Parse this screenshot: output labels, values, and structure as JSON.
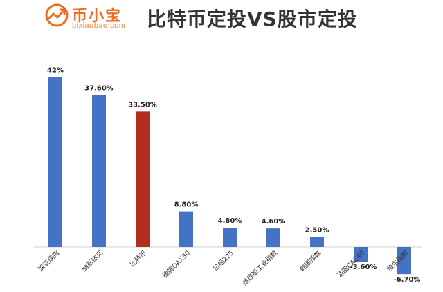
{
  "header": {
    "brand_name": "币小宝",
    "brand_url": "bixiaobao.com",
    "title": "比特币定投VS股市定投",
    "logo_icon": "trend-chart-icon",
    "brand_color": "#ef6b1f"
  },
  "chart_data": {
    "type": "bar",
    "title": "比特币定投VS股市定投",
    "xlabel": "",
    "ylabel": "",
    "categories": [
      "深证成指",
      "纳斯达克",
      "比特币",
      "德国DAX30",
      "日经225",
      "道琼斯工业指数",
      "韩国指数",
      "法国CAC40",
      "恒生指数"
    ],
    "values": [
      42,
      37.6,
      33.5,
      8.8,
      4.8,
      4.6,
      2.5,
      -3.6,
      -6.7
    ],
    "labels": [
      "42%",
      "37.60%",
      "33.50%",
      "8.80%",
      "4.80%",
      "4.60%",
      "2.50%",
      "-3.60%",
      "-6.70%"
    ],
    "colors": [
      "#4472c4",
      "#4472c4",
      "#b22e1f",
      "#4472c4",
      "#4472c4",
      "#4472c4",
      "#4472c4",
      "#4472c4",
      "#4472c4"
    ],
    "ylim": [
      -7,
      44
    ],
    "grid": false,
    "legend": "none"
  }
}
